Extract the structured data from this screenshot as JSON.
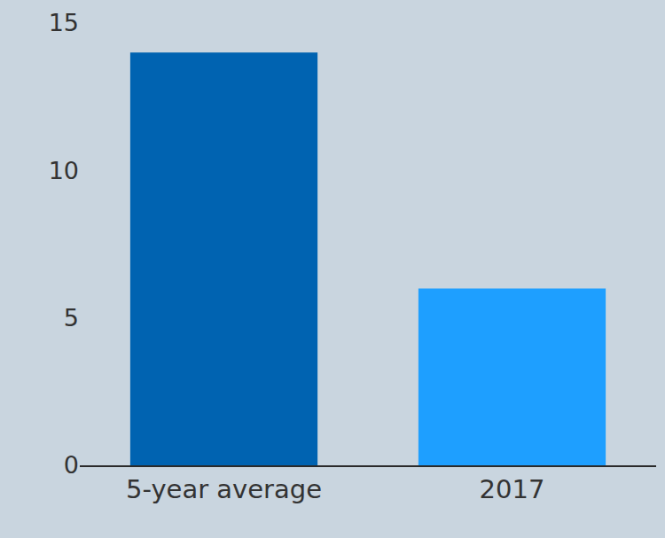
{
  "chart_data": {
    "type": "bar",
    "categories": [
      "5-year average",
      "2017"
    ],
    "values": [
      14,
      6
    ],
    "colors": [
      "#0063b1",
      "#1e9fff"
    ],
    "ylim": [
      0,
      15
    ],
    "yticks": [
      0,
      5,
      10,
      15
    ],
    "grid": false
  }
}
